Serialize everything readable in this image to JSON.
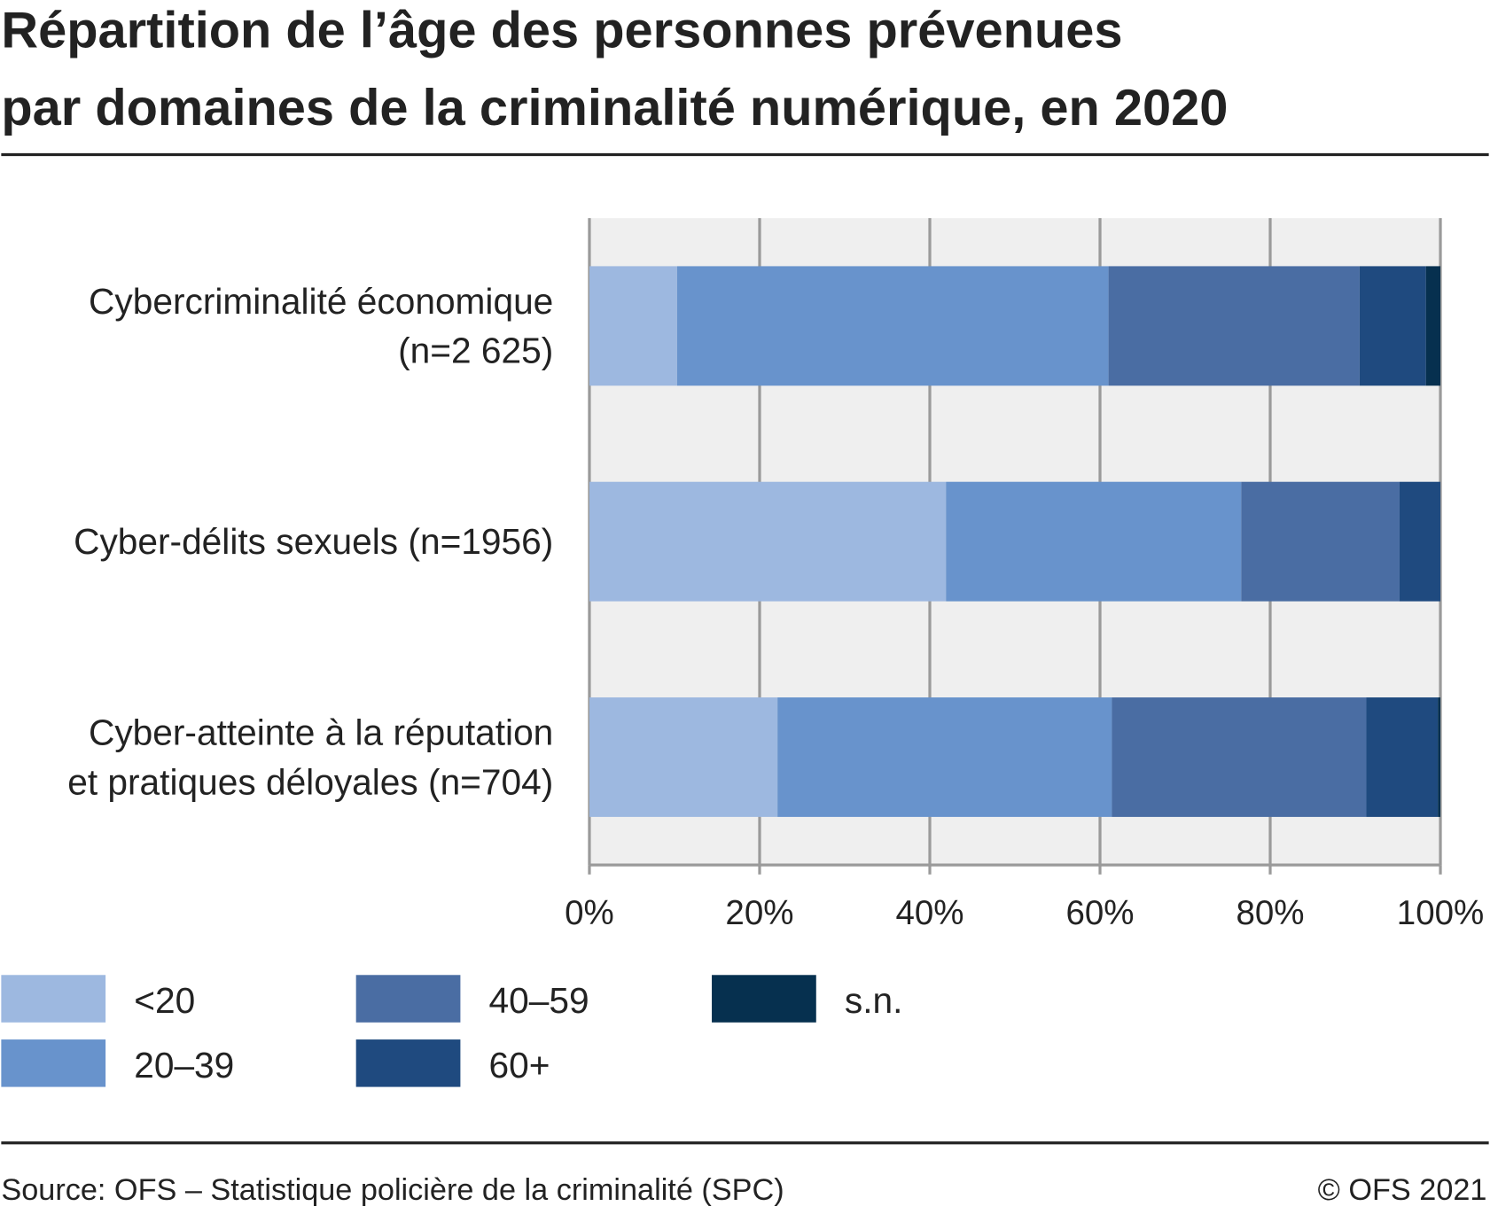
{
  "chart_data": {
    "type": "stacked-barh",
    "title": [
      "Répartition de l’âge des personnes prévenues",
      "par domaines de la criminalité numérique, en 2020"
    ],
    "categories": [
      [
        "Cybercriminalité économique",
        "(n=2 625)"
      ],
      [
        "Cyber-délits sexuels (n=1956)"
      ],
      [
        "Cyber-atteinte à la réputation",
        "et pratiques déloyales (n=704)"
      ]
    ],
    "series": [
      {
        "name": "<20",
        "color": "#9db8e0",
        "values": [
          10.3,
          41.9,
          22.1
        ]
      },
      {
        "name": "20–39",
        "color": "#6893cc",
        "values": [
          50.7,
          34.7,
          39.3
        ]
      },
      {
        "name": "40–59",
        "color": "#4a6da3",
        "values": [
          29.5,
          18.6,
          29.9
        ]
      },
      {
        "name": "60+",
        "color": "#1f4a7f",
        "values": [
          7.8,
          4.8,
          8.4
        ]
      },
      {
        "name": "s.n.",
        "color": "#06304f",
        "values": [
          1.7,
          0,
          0.3
        ]
      }
    ],
    "xlim": [
      0,
      100
    ],
    "xticks": [
      {
        "value": 0,
        "label": "0%"
      },
      {
        "value": 20,
        "label": "20%"
      },
      {
        "value": 40,
        "label": "40%"
      },
      {
        "value": 60,
        "label": "60%"
      },
      {
        "value": 80,
        "label": "80%"
      },
      {
        "value": 100,
        "label": "100%"
      }
    ],
    "grid": true,
    "source": "Source: OFS – Statistique policière de la criminalité (SPC)",
    "copyright": "© OFS 2021"
  }
}
